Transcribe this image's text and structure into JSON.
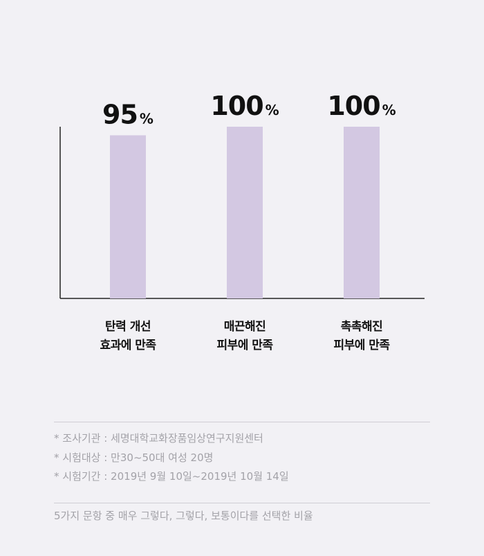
{
  "chart_data": {
    "type": "bar",
    "categories": [
      [
        "탄력 개선",
        "효과에 만족"
      ],
      [
        "매끈해진",
        "피부에 만족"
      ],
      [
        "촉촉해진",
        "피부에 만족"
      ]
    ],
    "values": [
      95,
      100,
      100
    ],
    "value_suffix": "%",
    "ylim": [
      0,
      100
    ],
    "bar_color": "#d3c8e2",
    "axis_color": "#222222",
    "grid": false
  },
  "notes": [
    "* 조사기관 : 세명대학교화장품임상연구지원센터",
    "* 시험대상 : 만30~50대 여성 20명",
    "* 시험기간 : 2019년 9월 10일~2019년 10월 14일"
  ],
  "footnote": "5가지 문항 중 매우 그렇다, 그렇다, 보통이다를 선택한 비율"
}
